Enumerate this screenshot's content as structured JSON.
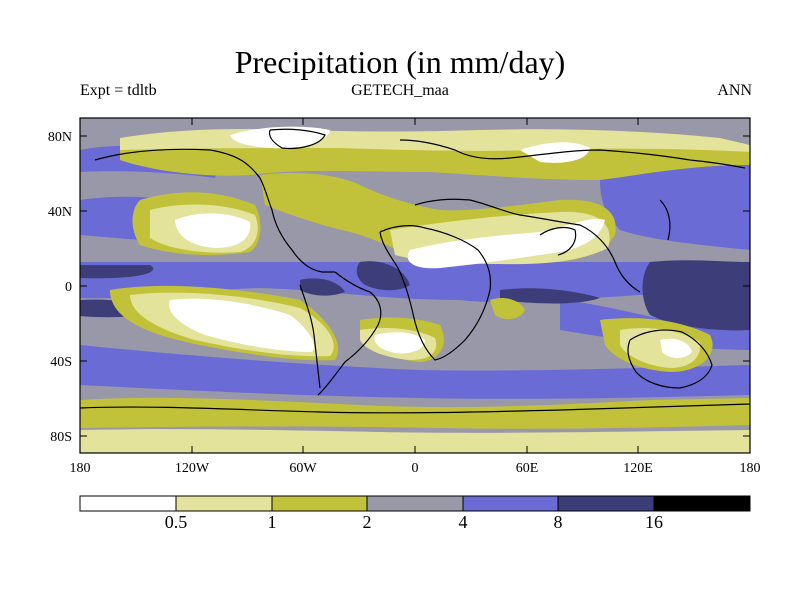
{
  "title": "Precipitation (in mm/day)",
  "subtitle_left": "Expt = tdltb",
  "subtitle_center": "GETECH_maa",
  "subtitle_right": "ANN",
  "x_ticks": [
    "180",
    "120W",
    "60W",
    "0",
    "60E",
    "120E",
    "180"
  ],
  "y_ticks": [
    "80N",
    "40N",
    "0",
    "40S",
    "80S"
  ],
  "colorbar": {
    "labels": [
      "0.5",
      "1",
      "2",
      "4",
      "8",
      "16"
    ],
    "colors": [
      "#ffffff",
      "#e3e39b",
      "#c2c23a",
      "#9898a8",
      "#6b6bd6",
      "#3d3d7a",
      "#000000"
    ]
  },
  "chart_data": {
    "type": "heatmap",
    "title": "Precipitation (in mm/day)",
    "variable": "precipitation",
    "units": "mm/day",
    "x_range": [
      -180,
      180
    ],
    "y_range": [
      -90,
      90
    ],
    "contour_levels": [
      0.5,
      1,
      2,
      4,
      8,
      16
    ]
  }
}
